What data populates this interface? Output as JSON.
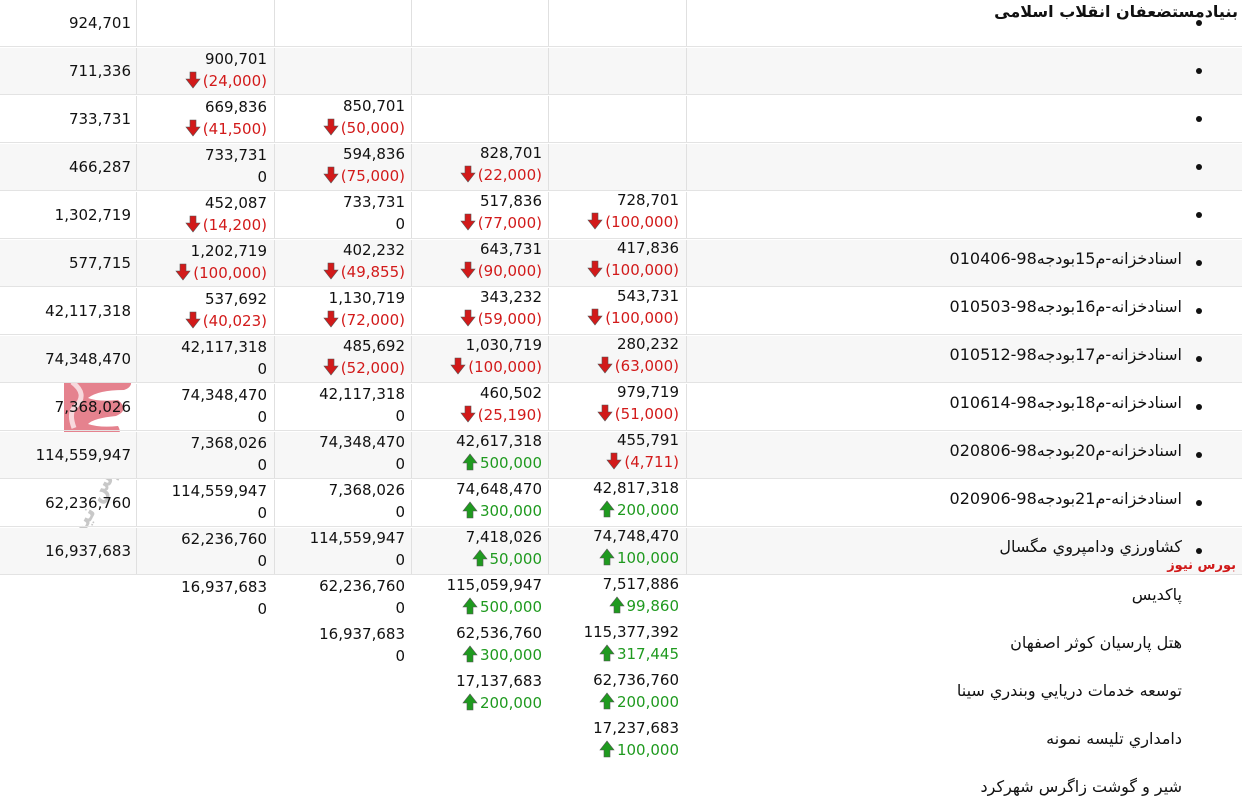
{
  "group_title": "بنیادمستضعفان انقلاب اسلامی",
  "watermark_text": "بورس نیوز",
  "brand_label": "بورس نیوز",
  "colors": {
    "negative": "#d21a1a",
    "positive": "#1f9a1f",
    "brand": "#d01818"
  },
  "columns_note": "",
  "rows": [
    {
      "name": "اسنادخزانه-م15بودجه98-010406",
      "c1": "728,701",
      "c1_change": "(100,000)",
      "c1_dir": "down",
      "c2": "828,701",
      "c2_change": "(22,000)",
      "c2_dir": "down",
      "c3": "850,701",
      "c3_change": "(50,000)",
      "c3_dir": "down",
      "c4": "900,701",
      "c4_change": "(24,000)",
      "c4_dir": "down",
      "c5": "924,701"
    },
    {
      "name": "اسنادخزانه-م16بودجه98-010503",
      "c1": "417,836",
      "c1_change": "(100,000)",
      "c1_dir": "down",
      "c2": "517,836",
      "c2_change": "(77,000)",
      "c2_dir": "down",
      "c3": "594,836",
      "c3_change": "(75,000)",
      "c3_dir": "down",
      "c4": "669,836",
      "c4_change": "(41,500)",
      "c4_dir": "down",
      "c5": "711,336"
    },
    {
      "name": "اسنادخزانه-م17بودجه98-010512",
      "c1": "543,731",
      "c1_change": "(100,000)",
      "c1_dir": "down",
      "c2": "643,731",
      "c2_change": "(90,000)",
      "c2_dir": "down",
      "c3": "733,731",
      "c3_change": "0",
      "c3_dir": "none",
      "c4": "733,731",
      "c4_change": "0",
      "c4_dir": "none",
      "c5": "733,731"
    },
    {
      "name": "اسنادخزانه-م18بودجه98-010614",
      "c1": "280,232",
      "c1_change": "(63,000)",
      "c1_dir": "down",
      "c2": "343,232",
      "c2_change": "(59,000)",
      "c2_dir": "down",
      "c3": "402,232",
      "c3_change": "(49,855)",
      "c3_dir": "down",
      "c4": "452,087",
      "c4_change": "(14,200)",
      "c4_dir": "down",
      "c5": "466,287"
    },
    {
      "name": "اسنادخزانه-م20بودجه98-020806",
      "c1": "979,719",
      "c1_change": "(51,000)",
      "c1_dir": "down",
      "c2": "1,030,719",
      "c2_change": "(100,000)",
      "c2_dir": "down",
      "c3": "1,130,719",
      "c3_change": "(72,000)",
      "c3_dir": "down",
      "c4": "1,202,719",
      "c4_change": "(100,000)",
      "c4_dir": "down",
      "c5": "1,302,719"
    },
    {
      "name": "اسنادخزانه-م21بودجه98-020906",
      "c1": "455,791",
      "c1_change": "(4,711)",
      "c1_dir": "down",
      "c2": "460,502",
      "c2_change": "(25,190)",
      "c2_dir": "down",
      "c3": "485,692",
      "c3_change": "(52,000)",
      "c3_dir": "down",
      "c4": "537,692",
      "c4_change": "(40,023)",
      "c4_dir": "down",
      "c5": "577,715"
    },
    {
      "name": "كشاورزي ودامپروي مگسال",
      "c1": "42,817,318",
      "c1_change": "200,000",
      "c1_dir": "up",
      "c2": "42,617,318",
      "c2_change": "500,000",
      "c2_dir": "up",
      "c3": "42,117,318",
      "c3_change": "0",
      "c3_dir": "none",
      "c4": "42,117,318",
      "c4_change": "0",
      "c4_dir": "none",
      "c5": "42,117,318"
    },
    {
      "name": "پاكديس",
      "c1": "74,748,470",
      "c1_change": "100,000",
      "c1_dir": "up",
      "c2": "74,648,470",
      "c2_change": "300,000",
      "c2_dir": "up",
      "c3": "74,348,470",
      "c3_change": "0",
      "c3_dir": "none",
      "c4": "74,348,470",
      "c4_change": "0",
      "c4_dir": "none",
      "c5": "74,348,470"
    },
    {
      "name": "هتل پارسيان كوثر اصفهان",
      "c1": "7,517,886",
      "c1_change": "99,860",
      "c1_dir": "up",
      "c2": "7,418,026",
      "c2_change": "50,000",
      "c2_dir": "up",
      "c3": "7,368,026",
      "c3_change": "0",
      "c3_dir": "none",
      "c4": "7,368,026",
      "c4_change": "0",
      "c4_dir": "none",
      "c5": "7,368,026"
    },
    {
      "name": "توسعه خدمات دريايي وبندري سينا",
      "c1": "115,377,392",
      "c1_change": "317,445",
      "c1_dir": "up",
      "c2": "115,059,947",
      "c2_change": "500,000",
      "c2_dir": "up",
      "c3": "114,559,947",
      "c3_change": "0",
      "c3_dir": "none",
      "c4": "114,559,947",
      "c4_change": "0",
      "c4_dir": "none",
      "c5": "114,559,947"
    },
    {
      "name": "دامداري تليسه نمونه",
      "c1": "62,736,760",
      "c1_change": "200,000",
      "c1_dir": "up",
      "c2": "62,536,760",
      "c2_change": "300,000",
      "c2_dir": "up",
      "c3": "62,236,760",
      "c3_change": "0",
      "c3_dir": "none",
      "c4": "62,236,760",
      "c4_change": "0",
      "c4_dir": "none",
      "c5": "62,236,760"
    },
    {
      "name": "شير و گوشت زاگرس شهركرد",
      "c1": "17,237,683",
      "c1_change": "100,000",
      "c1_dir": "up",
      "c2": "17,137,683",
      "c2_change": "200,000",
      "c2_dir": "up",
      "c3": "16,937,683",
      "c3_change": "0",
      "c3_dir": "none",
      "c4": "16,937,683",
      "c4_change": "0",
      "c4_dir": "none",
      "c5": "16,937,683"
    }
  ]
}
